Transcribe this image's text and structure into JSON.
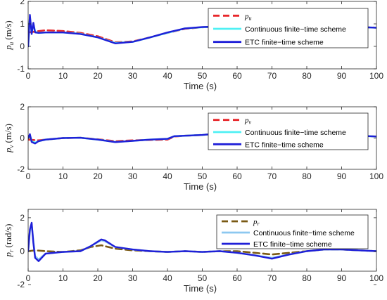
{
  "chart_data": [
    {
      "type": "line",
      "xlabel": "Time (s)",
      "ylabel_symbol": "p",
      "ylabel_sub": "u",
      "ylabel_unit": "(m/s)",
      "xlim": [
        0,
        100
      ],
      "ylim": [
        -1,
        2
      ],
      "xticks": [
        "0",
        "10",
        "20",
        "30",
        "40",
        "50",
        "60",
        "70",
        "80",
        "90",
        "100"
      ],
      "yticks": [
        "-1",
        "0",
        "1",
        "2"
      ],
      "grid": false,
      "legend_position": "top-right",
      "series": [
        {
          "name": "p_u",
          "legend_label": "p",
          "legend_sub": "u",
          "color": "#e8262a",
          "style": "dashed",
          "x": [
            0,
            2,
            5,
            10,
            15,
            20,
            25,
            30,
            35,
            40,
            45,
            50,
            55,
            60,
            65,
            70,
            75,
            80,
            85,
            90,
            95,
            100
          ],
          "y": [
            0.62,
            0.66,
            0.72,
            0.68,
            0.6,
            0.45,
            0.18,
            0.22,
            0.4,
            0.6,
            0.78,
            0.85,
            0.88,
            0.88,
            0.7,
            0.25,
            0.08,
            0.3,
            0.65,
            0.82,
            0.86,
            0.83
          ]
        },
        {
          "name": "Continuous finite-time scheme",
          "legend_label": "Continuous finite−time scheme",
          "color": "#4ff0f4",
          "style": "solid",
          "x": [
            0,
            0.5,
            1,
            1.5,
            2,
            3,
            5,
            10,
            15,
            20,
            25,
            30,
            35,
            40,
            45,
            50,
            55,
            60,
            65,
            70,
            75,
            80,
            85,
            90,
            95,
            100
          ],
          "y": [
            0.0,
            1.3,
            0.6,
            1.0,
            0.65,
            0.6,
            0.62,
            0.62,
            0.56,
            0.4,
            0.15,
            0.2,
            0.4,
            0.6,
            0.8,
            0.85,
            0.88,
            0.88,
            0.7,
            0.22,
            0.05,
            0.3,
            0.65,
            0.82,
            0.86,
            0.83
          ]
        },
        {
          "name": "ETC finite-time scheme",
          "legend_label": "ETC finite−time scheme",
          "color": "#1f1fd8",
          "style": "solid",
          "x": [
            0,
            0.5,
            1,
            1.5,
            2,
            3,
            5,
            10,
            15,
            20,
            25,
            30,
            35,
            40,
            45,
            50,
            55,
            60,
            65,
            70,
            75,
            80,
            85,
            90,
            95,
            100
          ],
          "y": [
            0.0,
            1.4,
            0.55,
            1.05,
            0.62,
            0.6,
            0.62,
            0.62,
            0.55,
            0.4,
            0.13,
            0.2,
            0.4,
            0.62,
            0.8,
            0.86,
            0.88,
            0.88,
            0.7,
            0.2,
            0.02,
            0.3,
            0.65,
            0.82,
            0.86,
            0.83
          ]
        }
      ]
    },
    {
      "type": "line",
      "xlabel": "Time (s)",
      "ylabel_symbol": "p",
      "ylabel_sub": "v",
      "ylabel_unit": "(m/s)",
      "xlim": [
        0,
        100
      ],
      "ylim": [
        -2,
        2
      ],
      "xticks": [
        "0",
        "10",
        "20",
        "30",
        "40",
        "50",
        "60",
        "70",
        "80",
        "90",
        "100"
      ],
      "yticks": [
        "-2",
        "0",
        "2"
      ],
      "grid": false,
      "legend_position": "top-right",
      "series": [
        {
          "name": "p_v",
          "legend_label": "p",
          "legend_sub": "v",
          "color": "#e8262a",
          "style": "dashed",
          "x": [
            0,
            3,
            5,
            10,
            15,
            20,
            25,
            30,
            35,
            40,
            42,
            45,
            50,
            55,
            60,
            65,
            70,
            75,
            80,
            85,
            90,
            95,
            100
          ],
          "y": [
            -0.1,
            -0.15,
            -0.1,
            0.0,
            0.02,
            -0.08,
            -0.2,
            -0.15,
            -0.12,
            -0.1,
            0.1,
            0.15,
            0.2,
            0.3,
            0.3,
            0.25,
            0.2,
            0.2,
            0.25,
            0.2,
            0.15,
            0.15,
            0.1
          ]
        },
        {
          "name": "Continuous finite-time scheme",
          "legend_label": "Continuous finite−time scheme",
          "color": "#4ff0f4",
          "style": "solid",
          "x": [
            0,
            0.5,
            1,
            2,
            3,
            5,
            10,
            15,
            20,
            25,
            30,
            35,
            40,
            42,
            45,
            50,
            55,
            60,
            65,
            70,
            75,
            80,
            85,
            90,
            95,
            100
          ],
          "y": [
            0.0,
            0.2,
            -0.2,
            -0.3,
            -0.2,
            -0.1,
            0.0,
            0.02,
            -0.1,
            -0.25,
            -0.18,
            -0.1,
            -0.05,
            0.12,
            0.15,
            0.2,
            0.3,
            0.3,
            0.25,
            0.2,
            0.2,
            0.25,
            0.2,
            0.15,
            0.15,
            0.1
          ]
        },
        {
          "name": "ETC finite-time scheme",
          "legend_label": "ETC finite−time scheme",
          "color": "#1f1fd8",
          "style": "solid",
          "x": [
            0,
            0.5,
            1,
            2,
            3,
            5,
            10,
            15,
            20,
            25,
            30,
            35,
            40,
            42,
            45,
            50,
            55,
            60,
            65,
            70,
            75,
            80,
            85,
            90,
            95,
            100
          ],
          "y": [
            0.0,
            0.25,
            -0.25,
            -0.35,
            -0.2,
            -0.1,
            0.0,
            0.02,
            -0.1,
            -0.26,
            -0.18,
            -0.1,
            -0.05,
            0.12,
            0.15,
            0.2,
            0.3,
            0.3,
            0.25,
            0.2,
            0.2,
            0.25,
            0.2,
            0.15,
            0.15,
            0.1
          ]
        }
      ]
    },
    {
      "type": "line",
      "xlabel": "Time (s)",
      "ylabel_symbol": "p",
      "ylabel_sub": "r",
      "ylabel_unit": "(rad/s)",
      "xlim": [
        0,
        100
      ],
      "ylim": [
        -1.2,
        2.5
      ],
      "xticks": [
        "0",
        "10",
        "20",
        "30",
        "40",
        "50",
        "60",
        "70",
        "80",
        "90",
        "100"
      ],
      "yticks": [
        "-2",
        "0",
        "2"
      ],
      "grid": false,
      "legend_position": "top-right",
      "series": [
        {
          "name": "p_r",
          "legend_label": "p",
          "legend_sub": "r",
          "color": "#7a5a14",
          "style": "dashed",
          "x": [
            0,
            2,
            5,
            10,
            15,
            18,
            21,
            25,
            30,
            35,
            40,
            45,
            50,
            55,
            60,
            65,
            70,
            75,
            80,
            85,
            90,
            95,
            100
          ],
          "y": [
            0.0,
            0.05,
            0.0,
            -0.05,
            0.05,
            0.25,
            0.35,
            0.15,
            0.05,
            0.0,
            -0.05,
            0.0,
            -0.05,
            0.0,
            0.0,
            -0.1,
            -0.2,
            -0.1,
            0.0,
            0.1,
            0.1,
            0.05,
            0.0
          ]
        },
        {
          "name": "Continuous finite-time scheme",
          "legend_label": "Continuous finite−time scheme",
          "color": "#8cc8f0",
          "style": "solid",
          "x": [
            0,
            0.5,
            1,
            1.5,
            2,
            3,
            5,
            10,
            15,
            18,
            21,
            22,
            25,
            30,
            35,
            40,
            45,
            50,
            55,
            60,
            65,
            70,
            75,
            80,
            85,
            90,
            95,
            100
          ],
          "y": [
            0.0,
            1.2,
            1.6,
            0.6,
            -0.3,
            -0.5,
            -0.15,
            -0.05,
            0.0,
            0.3,
            0.65,
            0.6,
            0.25,
            0.1,
            0.0,
            -0.05,
            0.0,
            -0.05,
            0.0,
            -0.1,
            -0.25,
            -0.4,
            -0.2,
            0.0,
            0.1,
            0.1,
            0.05,
            0.0
          ]
        },
        {
          "name": "ETC finite-time scheme",
          "legend_label": "ETC finite−time scheme",
          "color": "#1f1fd8",
          "style": "solid",
          "x": [
            0,
            0.5,
            1,
            1.5,
            2,
            3,
            5,
            10,
            15,
            18,
            21,
            22,
            25,
            30,
            35,
            40,
            45,
            50,
            55,
            60,
            65,
            70,
            75,
            80,
            85,
            90,
            95,
            100
          ],
          "y": [
            0.0,
            1.3,
            1.7,
            0.5,
            -0.4,
            -0.6,
            -0.15,
            -0.05,
            0.0,
            0.3,
            0.7,
            0.65,
            0.25,
            0.1,
            0.0,
            -0.05,
            0.0,
            -0.05,
            0.0,
            -0.1,
            -0.25,
            -0.45,
            -0.2,
            0.0,
            0.1,
            0.1,
            0.05,
            0.0
          ]
        }
      ]
    }
  ]
}
